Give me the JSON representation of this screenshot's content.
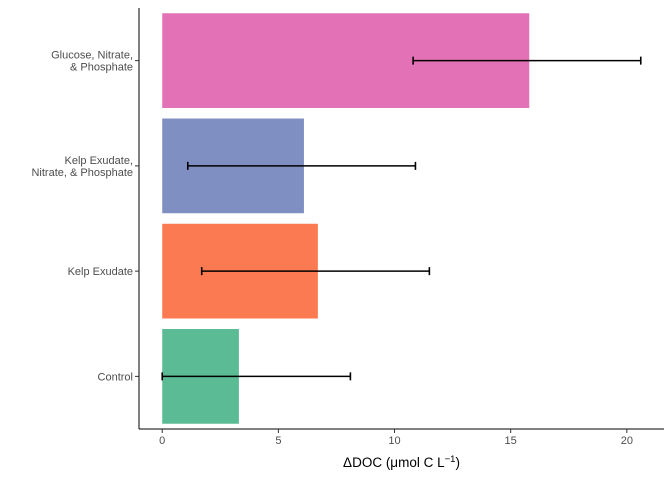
{
  "chart_data": {
    "type": "bar",
    "orientation": "horizontal",
    "categories": [
      [
        "Control"
      ],
      [
        "Kelp Exudate"
      ],
      [
        "Kelp Exudate,",
        "Nitrate, & Phosphate"
      ],
      [
        "Glucose, Nitrate,",
        "& Phosphate"
      ]
    ],
    "values": [
      3.3,
      6.7,
      6.1,
      15.8
    ],
    "error_low": [
      0.0,
      1.7,
      1.1,
      10.8
    ],
    "error_high": [
      8.1,
      11.5,
      10.9,
      20.6
    ],
    "colors": [
      "#5bbb94",
      "#fc7a52",
      "#7f8fc2",
      "#e271b5"
    ],
    "xlim": [
      -1,
      21.6
    ],
    "x_ticks": [
      0,
      5,
      10,
      15,
      20
    ],
    "xlabel": {
      "prefix": "ΔDOC (μmol C L",
      "superscript": "−1",
      "suffix": ")"
    },
    "ylabel": "",
    "title": "",
    "legend": "none",
    "grid": false
  }
}
